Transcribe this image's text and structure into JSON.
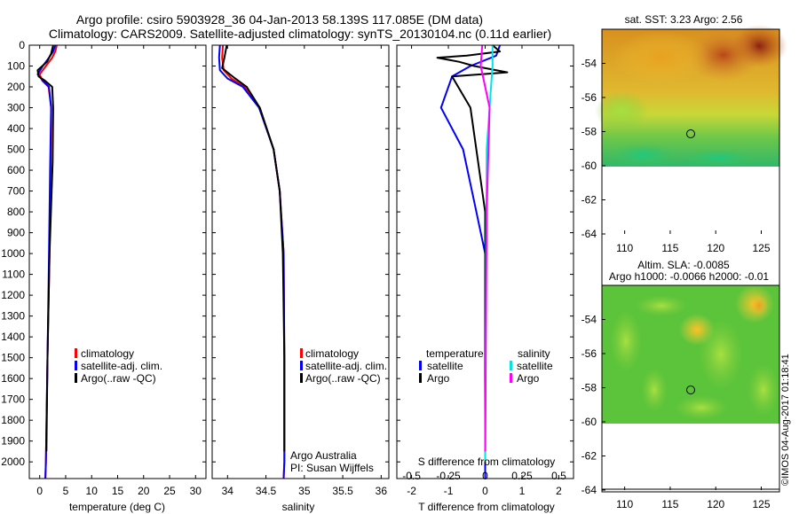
{
  "title": {
    "line1": "Argo profile: csiro 5903928_36 04-Jan-2013 58.139S 117.085E (DM data)",
    "line2": "Climatology: CARS2009. Satellite-adjusted climatology: synTS_20130104.nc (0.11d earlier)"
  },
  "colors": {
    "climatology": "#ff0000",
    "satellite": "#0000ff",
    "argo": "#000000",
    "sal_satellite": "#00e5e5",
    "sal_argo": "#ff00ff"
  },
  "depth_axis": {
    "ticks": [
      "0",
      "100",
      "200",
      "300",
      "400",
      "500",
      "600",
      "700",
      "800",
      "900",
      "1000",
      "1100",
      "1200",
      "1300",
      "1400",
      "1500",
      "1600",
      "1700",
      "1800",
      "1900",
      "2000"
    ]
  },
  "chart_data": [
    {
      "type": "line",
      "name": "temperature",
      "xlabel": "temperature (deg C)",
      "xlim": [
        -2,
        32
      ],
      "ylim": [
        2080,
        0
      ],
      "xticks": [
        "0",
        "5",
        "10",
        "15",
        "20",
        "25",
        "30"
      ],
      "xtick_values": [
        0,
        5,
        10,
        15,
        20,
        25,
        30
      ],
      "legend": [
        "climatology",
        "satellite-adj. clim.",
        "Argo(..raw -QC)"
      ],
      "series": [
        {
          "name": "climatology",
          "x": [
            3.3,
            3.0,
            2.4,
            1.2,
            0.0,
            0.5,
            1.7,
            2.2,
            2.1,
            1.9,
            1.5,
            1.2,
            1.1
          ],
          "y": [
            0,
            30,
            60,
            100,
            140,
            170,
            200,
            300,
            600,
            1000,
            1500,
            2000,
            2080
          ]
        },
        {
          "name": "satellite-adj. clim.",
          "x": [
            3.0,
            2.6,
            1.8,
            0.6,
            -0.4,
            0.6,
            1.8,
            2.2,
            2.0,
            1.8,
            1.5,
            1.2,
            1.1
          ],
          "y": [
            0,
            30,
            60,
            100,
            140,
            170,
            200,
            300,
            600,
            1000,
            1500,
            2000,
            2080
          ]
        },
        {
          "name": "Argo(..raw -QC)",
          "x": [
            2.6,
            2.2,
            1.4,
            -0.4,
            -0.2,
            1.0,
            2.4,
            2.6,
            2.5,
            1.9,
            1.5,
            1.3
          ],
          "y": [
            0,
            40,
            80,
            120,
            150,
            170,
            200,
            300,
            560,
            1000,
            1500,
            1950
          ]
        }
      ]
    },
    {
      "type": "line",
      "name": "salinity",
      "xlabel": "salinity",
      "xlim": [
        33.8,
        36.1
      ],
      "ylim": [
        2080,
        0
      ],
      "xticks": [
        "34",
        "34.5",
        "35",
        "35.5",
        "36"
      ],
      "xtick_values": [
        34,
        34.5,
        35,
        35.5,
        36
      ],
      "legend": [
        "climatology",
        "satellite-adj. clim.",
        "Argo(..raw -QC)"
      ],
      "annotation": [
        "Argo Australia",
        "PI: Susan Wijffels"
      ],
      "series": [
        {
          "name": "climatology",
          "x": [
            33.94,
            33.93,
            33.95,
            34.05,
            34.22,
            34.42,
            34.6,
            34.68,
            34.73,
            34.74,
            34.74,
            34.73
          ],
          "y": [
            0,
            60,
            120,
            160,
            200,
            300,
            500,
            700,
            1000,
            1500,
            2000,
            2080
          ]
        },
        {
          "name": "satellite-adj. clim.",
          "x": [
            33.9,
            33.89,
            33.9,
            34.0,
            34.2,
            34.41,
            34.6,
            34.68,
            34.73,
            34.74,
            34.74,
            34.73
          ],
          "y": [
            0,
            60,
            120,
            160,
            200,
            300,
            500,
            700,
            1000,
            1500,
            2000,
            2080
          ]
        },
        {
          "name": "Argo(..raw -QC)",
          "x": [
            33.99,
            33.96,
            33.93,
            34.1,
            34.25,
            34.42,
            34.6,
            34.68,
            34.72,
            34.74,
            34.74
          ],
          "y": [
            0,
            60,
            110,
            160,
            200,
            300,
            500,
            700,
            1000,
            1500,
            1950
          ]
        }
      ]
    },
    {
      "type": "line",
      "name": "differences",
      "xlabel": "T difference from climatology",
      "xlabel2": "S difference from climatology",
      "xlim": [
        -2.4,
        2.4
      ],
      "ylim": [
        2080,
        0
      ],
      "xticks": [
        "-2",
        "-1",
        "0",
        "1",
        "2"
      ],
      "xtick_values": [
        -2,
        -1,
        0,
        1,
        2
      ],
      "sticks": [
        "-0.5",
        "-0.25",
        "0",
        "0.25",
        "0.5"
      ],
      "stick_values": [
        -0.5,
        -0.25,
        0,
        0.25,
        0.5
      ],
      "legend_headers": [
        "temperature",
        "salinity"
      ],
      "legend": [
        "satellite",
        "Argo",
        "satellite",
        "Argo"
      ],
      "series": [
        {
          "name": "T satellite",
          "x": [
            0.4,
            0.3,
            -0.4,
            -0.9,
            -1.2,
            -0.6,
            -0.3,
            0.0,
            0.0
          ],
          "y": [
            0,
            50,
            100,
            150,
            300,
            500,
            750,
            1000,
            2080
          ]
        },
        {
          "name": "T Argo",
          "x": [
            0.2,
            0.4,
            -0.5,
            -1.3,
            -0.7,
            -0.3,
            0.6,
            -0.9,
            -0.4,
            0.0,
            0.0
          ],
          "y": [
            0,
            30,
            50,
            60,
            80,
            100,
            130,
            150,
            300,
            800,
            1950
          ]
        },
        {
          "name": "S satellite",
          "x": [
            0.05,
            0.05,
            0.04,
            0.03,
            0.01,
            0.0
          ],
          "y": [
            0,
            100,
            200,
            300,
            500,
            2000
          ]
        },
        {
          "name": "S Argo",
          "x": [
            -0.02,
            -0.03,
            0.0,
            0.03,
            0.01,
            0.0
          ],
          "y": [
            0,
            100,
            200,
            300,
            800,
            1950
          ]
        }
      ]
    },
    {
      "type": "heatmap",
      "name": "sst_map",
      "title": "sat. SST: 3.23 Argo: 2.56",
      "xlim": [
        107.5,
        127
      ],
      "ylim": [
        -64,
        -52
      ],
      "xticks": [
        "110",
        "115",
        "120",
        "125"
      ],
      "yticks": [
        "-54",
        "-56",
        "-58",
        "-60",
        "-62",
        "-64"
      ],
      "marker": {
        "lon": 117.085,
        "lat": -58.139
      }
    },
    {
      "type": "heatmap",
      "name": "sla_map",
      "title": "Altim. SLA: -0.0085",
      "subtitle": "Argo h1000: -0.0066 h2000: -0.01",
      "xlim": [
        107.5,
        127
      ],
      "ylim": [
        -64,
        -52
      ],
      "xticks": [
        "110",
        "115",
        "120",
        "125"
      ],
      "yticks": [
        "-54",
        "-56",
        "-58",
        "-60",
        "-62",
        "-64"
      ],
      "marker": {
        "lon": 117.085,
        "lat": -58.139
      }
    }
  ],
  "credit": "©IMOS 04-Aug-2017 01:18:41"
}
